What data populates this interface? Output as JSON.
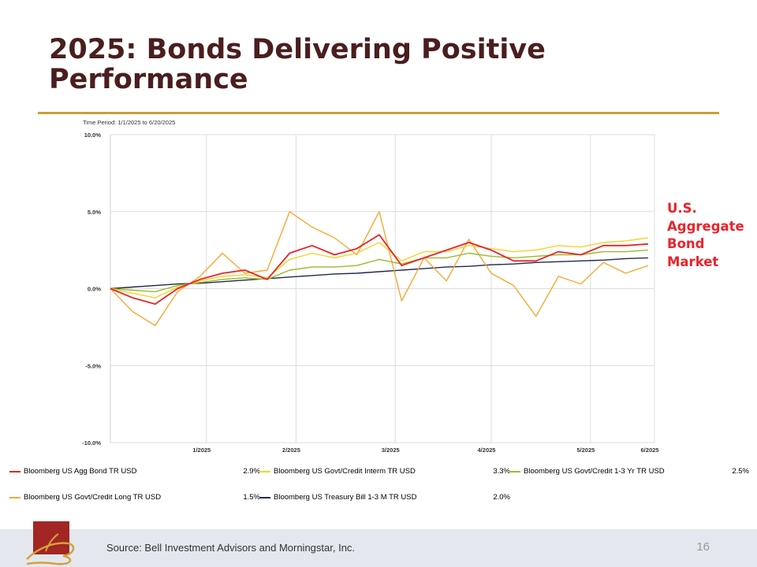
{
  "slide": {
    "title": "2025: Bonds Delivering Positive Performance",
    "time_period": "Time Period: 1/1/2025 to 6/20/2025",
    "callout": [
      "U.S.",
      "Aggregate",
      "Bond",
      "Market"
    ],
    "source": "Source: Bell Investment Advisors and Morningstar, Inc.",
    "page_number": "16"
  },
  "colors": {
    "title": "#4a1e1e",
    "rule": "#c8a032",
    "callout": "#e8242a",
    "footer": "#e4e8ee"
  },
  "legend": [
    {
      "name": "Bloomberg US Agg Bond TR USD",
      "value": "2.9%",
      "color": "#e8242a"
    },
    {
      "name": "Bloomberg US Govt/Credit Interm TR USD",
      "value": "3.3%",
      "color": "#f5d327"
    },
    {
      "name": "Bloomberg US Govt/Credit 1-3 Yr TR USD",
      "value": "2.5%",
      "color": "#9bbb2a"
    },
    {
      "name": "Bloomberg US Govt/Credit Long TR USD",
      "value": "1.5%",
      "color": "#f7a832"
    },
    {
      "name": "Bloomberg US Treasury Bill 1-3 M TR USD",
      "value": "2.0%",
      "color": "#1f2a52"
    }
  ],
  "chart_data": {
    "type": "line",
    "xlabel": "",
    "ylabel": "",
    "ylim": [
      -10,
      10
    ],
    "yticks": [
      -10,
      -5,
      0,
      5,
      10
    ],
    "ytick_labels": [
      "-10.0%",
      "-5.0%",
      "0.0%",
      "5.0%",
      "10.0%"
    ],
    "xlim": [
      "2025-01-01",
      "2025-06-20"
    ],
    "xticks": [
      {
        "label": "1/2025",
        "date": "2025-01-31"
      },
      {
        "label": "2/2025",
        "date": "2025-02-28"
      },
      {
        "label": "3/2025",
        "date": "2025-03-31"
      },
      {
        "label": "4/2025",
        "date": "2025-04-30"
      },
      {
        "label": "5/2025",
        "date": "2025-05-31"
      },
      {
        "label": "6/2025",
        "date": "2025-06-20"
      }
    ],
    "grid": true,
    "legend_position": "bottom",
    "x": [
      "2025-01-01",
      "2025-01-08",
      "2025-01-15",
      "2025-01-22",
      "2025-01-29",
      "2025-02-05",
      "2025-02-12",
      "2025-02-19",
      "2025-02-26",
      "2025-03-05",
      "2025-03-12",
      "2025-03-19",
      "2025-03-26",
      "2025-04-02",
      "2025-04-09",
      "2025-04-16",
      "2025-04-23",
      "2025-04-30",
      "2025-05-07",
      "2025-05-14",
      "2025-05-21",
      "2025-05-28",
      "2025-06-04",
      "2025-06-11",
      "2025-06-18"
    ],
    "series": [
      {
        "name": "Bloomberg US Agg Bond TR USD",
        "color": "#e8242a",
        "values": [
          0.0,
          -0.6,
          -1.0,
          0.0,
          0.6,
          1.0,
          1.2,
          0.6,
          2.3,
          2.8,
          2.2,
          2.6,
          3.5,
          1.5,
          2.0,
          2.5,
          3.0,
          2.5,
          1.8,
          1.8,
          2.4,
          2.2,
          2.8,
          2.8,
          2.9
        ]
      },
      {
        "name": "Bloomberg US Govt/Credit Interm TR USD",
        "color": "#f5d327",
        "values": [
          0.0,
          -0.3,
          -0.6,
          0.1,
          0.5,
          0.8,
          0.9,
          0.7,
          1.9,
          2.3,
          2.0,
          2.3,
          3.0,
          1.8,
          2.4,
          2.4,
          2.8,
          2.6,
          2.4,
          2.5,
          2.8,
          2.7,
          3.0,
          3.1,
          3.3
        ]
      },
      {
        "name": "Bloomberg US Govt/Credit 1-3 Yr TR USD",
        "color": "#9bbb2a",
        "values": [
          0.0,
          -0.1,
          -0.2,
          0.2,
          0.4,
          0.6,
          0.7,
          0.6,
          1.2,
          1.4,
          1.4,
          1.5,
          1.9,
          1.6,
          2.0,
          2.0,
          2.3,
          2.1,
          2.0,
          2.1,
          2.2,
          2.2,
          2.4,
          2.4,
          2.5
        ]
      },
      {
        "name": "Bloomberg US Govt/Credit Long TR USD",
        "color": "#f7a832",
        "values": [
          0.0,
          -1.5,
          -2.4,
          -0.2,
          0.8,
          2.3,
          1.0,
          1.2,
          5.0,
          4.0,
          3.3,
          2.2,
          5.0,
          -0.8,
          2.0,
          0.5,
          3.2,
          1.0,
          0.2,
          -1.8,
          0.8,
          0.3,
          1.7,
          1.0,
          1.5
        ]
      },
      {
        "name": "Bloomberg US Treasury Bill 1-3 M TR USD",
        "color": "#1f2a52",
        "values": [
          0.0,
          0.1,
          0.2,
          0.3,
          0.35,
          0.45,
          0.55,
          0.65,
          0.75,
          0.85,
          0.95,
          1.0,
          1.1,
          1.2,
          1.3,
          1.4,
          1.45,
          1.55,
          1.6,
          1.7,
          1.75,
          1.8,
          1.85,
          1.95,
          2.0
        ]
      }
    ]
  }
}
